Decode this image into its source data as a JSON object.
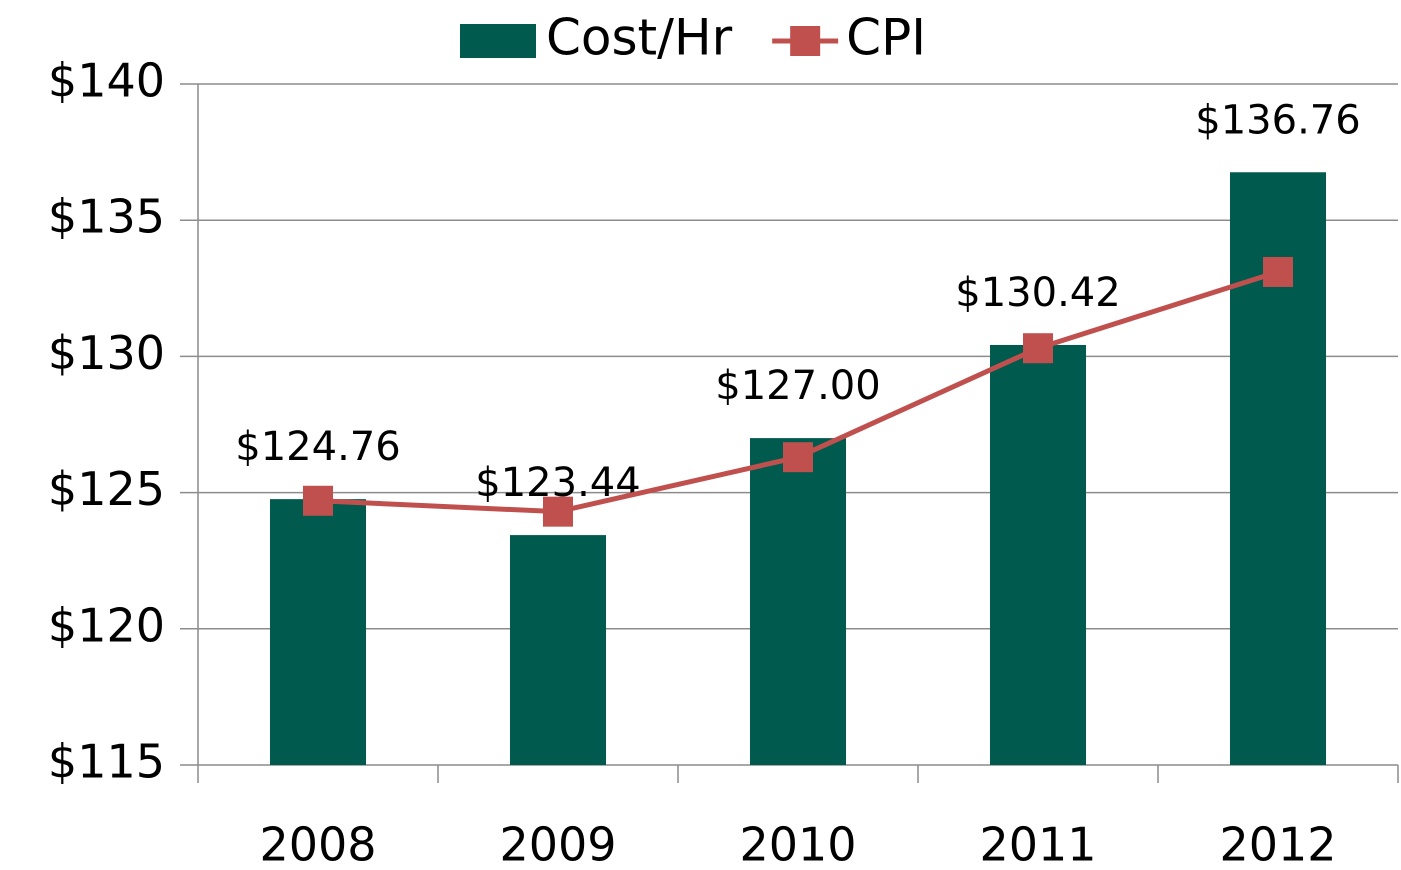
{
  "chart_data": {
    "type": "bar",
    "categories": [
      "2008",
      "2009",
      "2010",
      "2011",
      "2012"
    ],
    "series": [
      {
        "name": "Cost/Hr",
        "type": "bar",
        "color": "#005a4e",
        "values": [
          124.76,
          123.44,
          127.0,
          130.42,
          136.76
        ],
        "value_labels": [
          "$124.76",
          "$123.44",
          "$127.00",
          "$130.42",
          "$136.76"
        ]
      },
      {
        "name": "CPI",
        "type": "line",
        "color": "#c0504d",
        "values": [
          124.7,
          124.3,
          126.3,
          130.3,
          133.1
        ]
      }
    ],
    "ylim": [
      115,
      140
    ],
    "yticks": [
      {
        "value": 115,
        "label": "$115"
      },
      {
        "value": 120,
        "label": "$120"
      },
      {
        "value": 125,
        "label": "$125"
      },
      {
        "value": 130,
        "label": "$130"
      },
      {
        "value": 135,
        "label": "$135"
      },
      {
        "value": 140,
        "label": "$140"
      }
    ],
    "grid": true,
    "legend": "top"
  }
}
